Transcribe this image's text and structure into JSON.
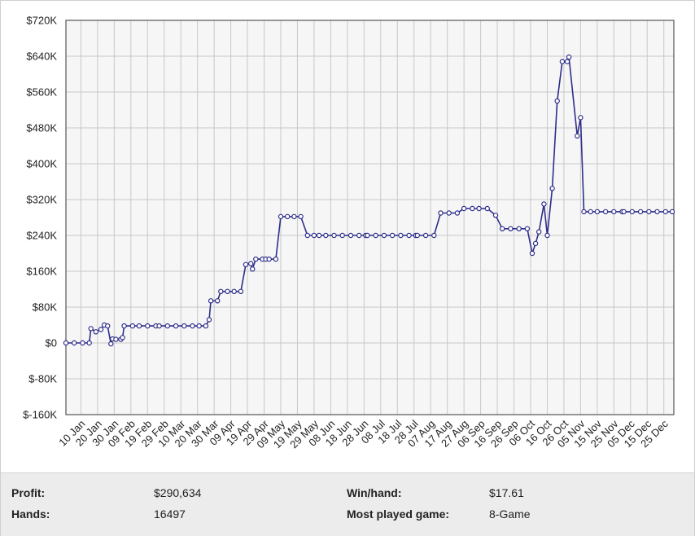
{
  "chart_data": {
    "type": "line",
    "title": "",
    "xlabel": "",
    "ylabel": "",
    "ylim": [
      -160000,
      720000
    ],
    "y_ticks": [
      -160000,
      -80000,
      0,
      80000,
      160000,
      240000,
      320000,
      400000,
      480000,
      560000,
      640000,
      720000
    ],
    "y_tick_labels": [
      "$-160K",
      "$-80K",
      "$0",
      "$80K",
      "$160K",
      "$240K",
      "$320K",
      "$400K",
      "$480K",
      "$560K",
      "$640K",
      "$720K"
    ],
    "x_tick_labels": [
      "10 Jan",
      "20 Jan",
      "30 Jan",
      "09 Feb",
      "19 Feb",
      "29 Feb",
      "10 Mar",
      "20 Mar",
      "30 Mar",
      "09 Apr",
      "19 Apr",
      "29 Apr",
      "09 May",
      "19 May",
      "29 May",
      "08 Jun",
      "18 Jun",
      "28 Jun",
      "08 Jul",
      "18 Jul",
      "28 Jul",
      "07 Aug",
      "17 Aug",
      "27 Aug",
      "06 Sep",
      "16 Sep",
      "26 Sep",
      "06 Oct",
      "16 Oct",
      "26 Oct",
      "05 Nov",
      "15 Nov",
      "25 Nov",
      "05 Dec",
      "15 Dec",
      "25 Dec"
    ],
    "x_start_date": "01 Jan",
    "x_end_date": "31 Dec",
    "grid": true,
    "series_color": "#2e2e8a",
    "series": [
      {
        "name": "",
        "points": [
          [
            "01 Jan",
            0
          ],
          [
            "06 Jan",
            0
          ],
          [
            "11 Jan",
            0
          ],
          [
            "15 Jan",
            0
          ],
          [
            "16 Jan",
            32000
          ],
          [
            "19 Jan",
            25000
          ],
          [
            "22 Jan",
            30000
          ],
          [
            "24 Jan",
            40000
          ],
          [
            "26 Jan",
            38000
          ],
          [
            "28 Jan",
            -2000
          ],
          [
            "29 Jan",
            9000
          ],
          [
            "31 Jan",
            8000
          ],
          [
            "03 Feb",
            8000
          ],
          [
            "04 Feb",
            12000
          ],
          [
            "05 Feb",
            38000
          ],
          [
            "10 Feb",
            38000
          ],
          [
            "14 Feb",
            38000
          ],
          [
            "19 Feb",
            38000
          ],
          [
            "24 Feb",
            38000
          ],
          [
            "26 Feb",
            38000
          ],
          [
            "02 Mar",
            38000
          ],
          [
            "07 Mar",
            38000
          ],
          [
            "12 Mar",
            38000
          ],
          [
            "17 Mar",
            38000
          ],
          [
            "21 Mar",
            38000
          ],
          [
            "25 Mar",
            38000
          ],
          [
            "27 Mar",
            52000
          ],
          [
            "28 Mar",
            94000
          ],
          [
            "01 Apr",
            94000
          ],
          [
            "03 Apr",
            115000
          ],
          [
            "07 Apr",
            115000
          ],
          [
            "11 Apr",
            115000
          ],
          [
            "15 Apr",
            115000
          ],
          [
            "18 Apr",
            175000
          ],
          [
            "21 Apr",
            177000
          ],
          [
            "22 Apr",
            165000
          ],
          [
            "24 Apr",
            187000
          ],
          [
            "28 Apr",
            187000
          ],
          [
            "30 Apr",
            187000
          ],
          [
            "02 May",
            187000
          ],
          [
            "06 May",
            187000
          ],
          [
            "09 May",
            282000
          ],
          [
            "13 May",
            282000
          ],
          [
            "17 May",
            282000
          ],
          [
            "21 May",
            282000
          ],
          [
            "25 May",
            240000
          ],
          [
            "29 May",
            240000
          ],
          [
            "01 Jun",
            240000
          ],
          [
            "05 Jun",
            240000
          ],
          [
            "10 Jun",
            240000
          ],
          [
            "15 Jun",
            240000
          ],
          [
            "20 Jun",
            240000
          ],
          [
            "25 Jun",
            240000
          ],
          [
            "29 Jun",
            240000
          ],
          [
            "30 Jun",
            240000
          ],
          [
            "05 Jul",
            240000
          ],
          [
            "10 Jul",
            240000
          ],
          [
            "15 Jul",
            240000
          ],
          [
            "20 Jul",
            240000
          ],
          [
            "25 Jul",
            240000
          ],
          [
            "29 Jul",
            240000
          ],
          [
            "30 Jul",
            240000
          ],
          [
            "04 Aug",
            240000
          ],
          [
            "09 Aug",
            240000
          ],
          [
            "13 Aug",
            290000
          ],
          [
            "18 Aug",
            290000
          ],
          [
            "23 Aug",
            290000
          ],
          [
            "27 Aug",
            300000
          ],
          [
            "01 Sep",
            300000
          ],
          [
            "05 Sep",
            300000
          ],
          [
            "10 Sep",
            300000
          ],
          [
            "15 Sep",
            285000
          ],
          [
            "19 Sep",
            255000
          ],
          [
            "24 Sep",
            255000
          ],
          [
            "29 Sep",
            255000
          ],
          [
            "04 Oct",
            255000
          ],
          [
            "07 Oct",
            200000
          ],
          [
            "09 Oct",
            222000
          ],
          [
            "11 Oct",
            248000
          ],
          [
            "14 Oct",
            310000
          ],
          [
            "16 Oct",
            240000
          ],
          [
            "19 Oct",
            345000
          ],
          [
            "22 Oct",
            540000
          ],
          [
            "25 Oct",
            628000
          ],
          [
            "28 Oct",
            628000
          ],
          [
            "29 Oct",
            638000
          ],
          [
            "03 Nov",
            462000
          ],
          [
            "05 Nov",
            503000
          ],
          [
            "07 Nov",
            293000
          ],
          [
            "11 Nov",
            293000
          ],
          [
            "15 Nov",
            293000
          ],
          [
            "20 Nov",
            293000
          ],
          [
            "25 Nov",
            293000
          ],
          [
            "30 Nov",
            293000
          ],
          [
            "01 Dec",
            293000
          ],
          [
            "06 Dec",
            293000
          ],
          [
            "11 Dec",
            293000
          ],
          [
            "16 Dec",
            293000
          ],
          [
            "21 Dec",
            293000
          ],
          [
            "26 Dec",
            293000
          ],
          [
            "30 Dec",
            293000
          ]
        ]
      }
    ]
  },
  "stats": {
    "profit_label": "Profit:",
    "profit_value": "$290,634",
    "hands_label": "Hands:",
    "hands_value": "16497",
    "winhand_label": "Win/hand:",
    "winhand_value": "$17.61",
    "game_label": "Most played game:",
    "game_value": "8-Game"
  }
}
